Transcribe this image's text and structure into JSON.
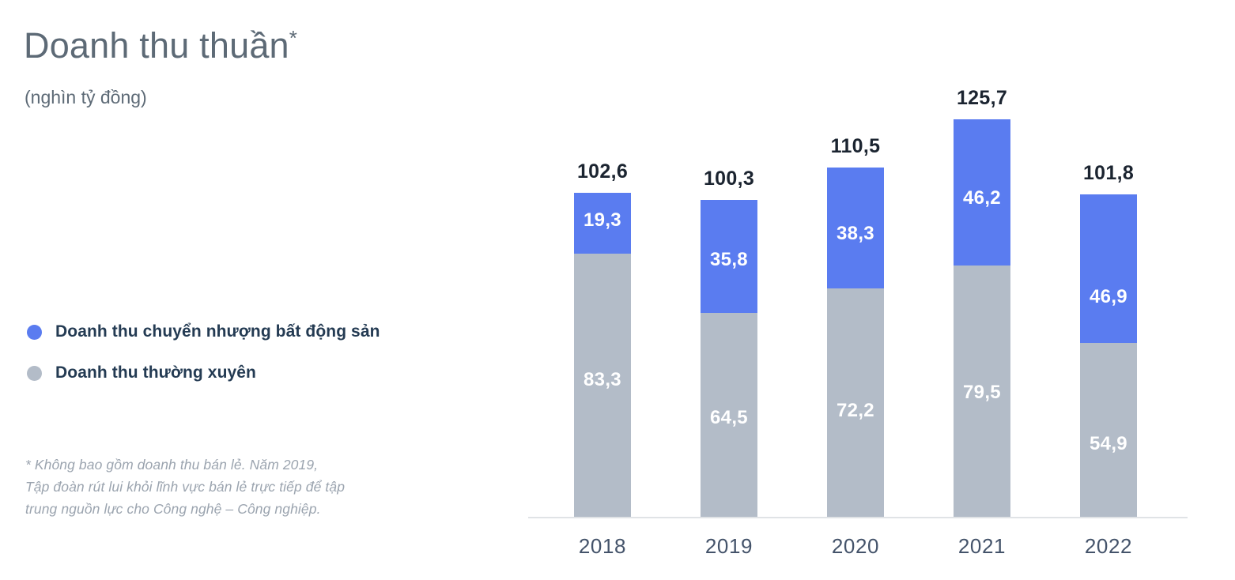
{
  "header": {
    "title": "Doanh thu thuần",
    "asterisk": "*",
    "subtitle": "(nghìn tỷ đồng)"
  },
  "legend": {
    "items": [
      {
        "label": "Doanh thu chuyển nhượng bất động sản",
        "color": "#5A7CF0"
      },
      {
        "label": "Doanh thu thường xuyên",
        "color": "#B3BCC8"
      }
    ]
  },
  "footnote": {
    "lines": [
      "* Không bao gồm doanh thu bán lẻ. Năm 2019,",
      "Tập đoàn rút lui khỏi lĩnh vực bán lẻ trực tiếp để tập",
      "trung nguồn lực cho Công nghệ – Công nghiệp."
    ]
  },
  "chart_data": {
    "type": "bar",
    "stacked": true,
    "title": "Doanh thu thuần*",
    "unit": "nghìn tỷ đồng",
    "categories": [
      "2018",
      "2019",
      "2020",
      "2021",
      "2022"
    ],
    "series": [
      {
        "name": "Doanh thu chuyển nhượng bất động sản",
        "stack_position": "top",
        "color": "#5A7CF0",
        "values": [
          19.3,
          35.8,
          38.3,
          46.2,
          46.9
        ],
        "labels": [
          "19,3",
          "35,8",
          "38,3",
          "46,2",
          "46,9"
        ]
      },
      {
        "name": "Doanh thu thường xuyên",
        "stack_position": "bottom",
        "color": "#B3BCC8",
        "values": [
          83.3,
          64.5,
          72.2,
          79.5,
          54.9
        ],
        "labels": [
          "83,3",
          "64,5",
          "72,2",
          "79,5",
          "54,9"
        ]
      }
    ],
    "totals": [
      102.6,
      100.3,
      110.5,
      125.7,
      101.8
    ],
    "total_labels": [
      "102,6",
      "100,3",
      "110,5",
      "125,7",
      "101,8"
    ],
    "ylim": [
      0,
      130
    ],
    "grid": false,
    "y_axis_visible": false,
    "legend_position": "left",
    "axis_line_color": "#E0E3E6",
    "total_label_color": "#1B2430",
    "tick_label_color": "#44536A",
    "value_label_color": "#FFFFFF"
  }
}
